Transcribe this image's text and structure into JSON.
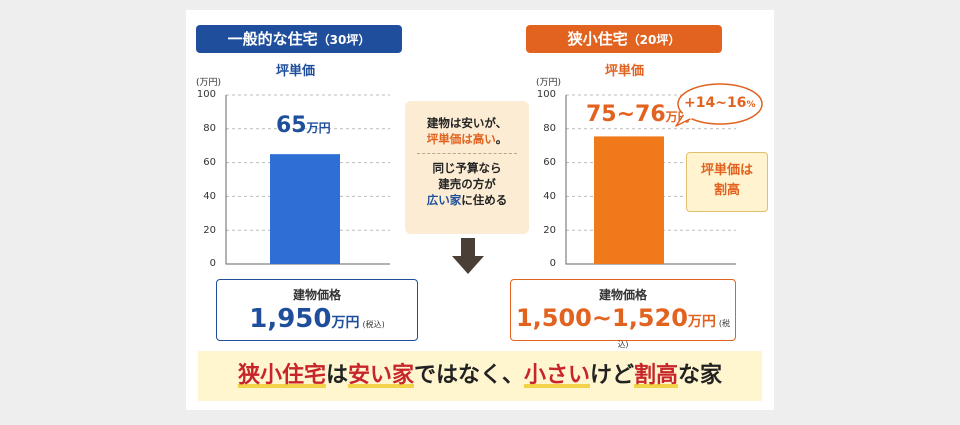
{
  "colors": {
    "blue": "#1f4f9c",
    "orange": "#e2621f",
    "red": "#c8252b"
  },
  "left": {
    "pill_main": "一般的な住宅",
    "pill_sub": "（30坪）",
    "subtitle": "坪単価",
    "value_label": "65",
    "value_unit": "万円",
    "price_label": "建物価格",
    "price_value": "1,950",
    "price_unit": "万円",
    "price_tax": "(税込)"
  },
  "right": {
    "pill_main": "狭小住宅",
    "pill_sub": "（20坪）",
    "subtitle": "坪単価",
    "value_label": "75~76",
    "value_unit": "万円",
    "bubble": "+14~16",
    "bubble_unit": "%",
    "note_line1": "坪単価は",
    "note_line2": "割高",
    "price_label": "建物価格",
    "price_value": "1,500~1,520",
    "price_unit": "万円",
    "price_tax": "(税込)"
  },
  "middle": {
    "line1": "建物は安いが、",
    "line2": "坪単価は高い",
    "line2_end": "。",
    "line3": "同じ予算なら",
    "line4": "建売の方が",
    "line5_hl": "広い家",
    "line5_end": "に住める"
  },
  "banner": {
    "p1": "狭小住宅",
    "p2": "は",
    "p3": "安い家",
    "p4": "ではなく、",
    "p5": "小さい",
    "p6": "けど",
    "p7": "割高",
    "p8": "な家"
  },
  "chart_data": [
    {
      "type": "bar",
      "subtitle": "坪単価",
      "y_unit": "(万円)",
      "categories": [
        "一般的な住宅（30坪）"
      ],
      "values": [
        65
      ],
      "ylim": [
        0,
        100
      ],
      "yticks": [
        0,
        20,
        40,
        60,
        80,
        100
      ],
      "grid": true,
      "color": "#2e6fd6"
    },
    {
      "type": "bar",
      "subtitle": "坪単価",
      "y_unit": "(万円)",
      "categories": [
        "狭小住宅（20坪）"
      ],
      "values": [
        75.5
      ],
      "ylim": [
        0,
        100
      ],
      "yticks": [
        0,
        20,
        40,
        60,
        80,
        100
      ],
      "grid": true,
      "color": "#f07a1a"
    }
  ]
}
